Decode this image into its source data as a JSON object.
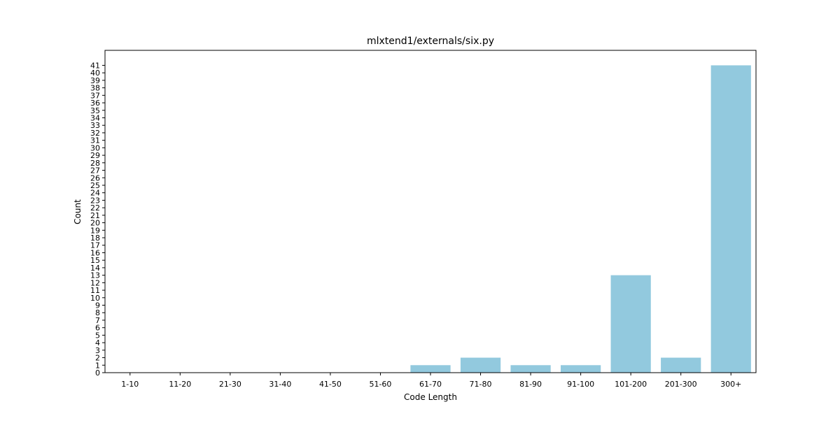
{
  "chart_data": {
    "type": "bar",
    "title": "mlxtend1/externals/six.py",
    "xlabel": "Code Length",
    "ylabel": "Count",
    "categories": [
      "1-10",
      "11-20",
      "21-30",
      "31-40",
      "41-50",
      "51-60",
      "61-70",
      "71-80",
      "81-90",
      "91-100",
      "101-200",
      "201-300",
      "300+"
    ],
    "values": [
      0,
      0,
      0,
      0,
      0,
      0,
      1,
      2,
      1,
      1,
      13,
      2,
      41
    ],
    "ylim": [
      0,
      43
    ],
    "yticks": [
      0,
      1,
      2,
      3,
      4,
      5,
      6,
      7,
      8,
      9,
      10,
      11,
      12,
      13,
      14,
      15,
      16,
      17,
      18,
      19,
      20,
      21,
      22,
      23,
      24,
      25,
      26,
      27,
      28,
      29,
      30,
      31,
      32,
      33,
      34,
      35,
      36,
      37,
      38,
      39,
      40,
      41
    ],
    "bar_color": "#92c9de",
    "grid": false,
    "legend": "none"
  }
}
